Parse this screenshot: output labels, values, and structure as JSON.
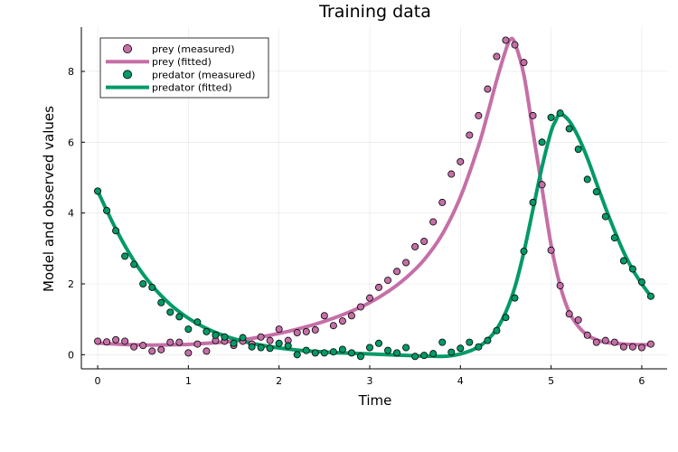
{
  "chart_data": {
    "type": "line",
    "title": "Training data",
    "xlabel": "Time",
    "ylabel": "Model and observed values",
    "xlim": [
      -0.18,
      6.28
    ],
    "ylim": [
      -0.4,
      9.25
    ],
    "xticks": [
      0,
      1,
      2,
      3,
      4,
      5,
      6
    ],
    "yticks": [
      0,
      2,
      4,
      6,
      8
    ],
    "grid": true,
    "legend_position": "top-left",
    "colors": {
      "prey": "#c56fa7",
      "predator": "#009a68"
    },
    "series": [
      {
        "name": "prey (measured)",
        "kind": "scatter",
        "color": "#c56fa7",
        "x": [
          0,
          0.1,
          0.2,
          0.3,
          0.4,
          0.5,
          0.6,
          0.7,
          0.8,
          0.9,
          1.0,
          1.1,
          1.2,
          1.3,
          1.4,
          1.5,
          1.6,
          1.7,
          1.8,
          1.9,
          2.0,
          2.1,
          2.2,
          2.3,
          2.4,
          2.5,
          2.6,
          2.7,
          2.8,
          2.9,
          3.0,
          3.1,
          3.2,
          3.3,
          3.4,
          3.5,
          3.6,
          3.7,
          3.8,
          3.9,
          4.0,
          4.1,
          4.2,
          4.3,
          4.4,
          4.5,
          4.6,
          4.7,
          4.8,
          4.9,
          5.0,
          5.1,
          5.2,
          5.3,
          5.4,
          5.5,
          5.6,
          5.7,
          5.8,
          5.9,
          6.0,
          6.1
        ],
        "y": [
          0.38,
          0.36,
          0.42,
          0.38,
          0.22,
          0.26,
          0.1,
          0.14,
          0.35,
          0.35,
          0.05,
          0.3,
          0.1,
          0.4,
          0.38,
          0.26,
          0.38,
          0.3,
          0.5,
          0.4,
          0.72,
          0.4,
          0.62,
          0.65,
          0.7,
          1.1,
          0.82,
          0.95,
          1.1,
          1.35,
          1.6,
          1.9,
          2.1,
          2.35,
          2.6,
          3.05,
          3.2,
          3.75,
          4.3,
          5.1,
          5.45,
          6.2,
          6.75,
          7.5,
          8.42,
          8.88,
          8.75,
          8.25,
          6.75,
          4.8,
          2.95,
          1.95,
          1.15,
          0.98,
          0.55,
          0.35,
          0.4,
          0.35,
          0.22,
          0.22,
          0.2,
          0.3
        ]
      },
      {
        "name": "prey (fitted)",
        "kind": "line",
        "color": "#c56fa7",
        "x": [
          0,
          0.2,
          0.4,
          0.6,
          0.8,
          1.0,
          1.2,
          1.4,
          1.6,
          1.8,
          2.0,
          2.2,
          2.4,
          2.6,
          2.8,
          3.0,
          3.2,
          3.4,
          3.6,
          3.8,
          4.0,
          4.2,
          4.3,
          4.4,
          4.5,
          4.55,
          4.6,
          4.7,
          4.8,
          4.9,
          5.0,
          5.1,
          5.2,
          5.3,
          5.4,
          5.5,
          5.6,
          5.8,
          6.0,
          6.1
        ],
        "y": [
          0.33,
          0.3,
          0.28,
          0.27,
          0.28,
          0.29,
          0.32,
          0.36,
          0.42,
          0.5,
          0.6,
          0.72,
          0.86,
          1.03,
          1.23,
          1.47,
          1.78,
          2.17,
          2.68,
          3.4,
          4.45,
          5.9,
          6.8,
          7.75,
          8.6,
          8.9,
          8.8,
          7.9,
          6.3,
          4.7,
          3.1,
          1.95,
          1.2,
          0.8,
          0.55,
          0.42,
          0.35,
          0.3,
          0.28,
          0.28
        ]
      },
      {
        "name": "predator (measured)",
        "kind": "scatter",
        "color": "#009a68",
        "x": [
          0,
          0.1,
          0.2,
          0.3,
          0.4,
          0.5,
          0.6,
          0.7,
          0.8,
          0.9,
          1.0,
          1.1,
          1.2,
          1.3,
          1.4,
          1.5,
          1.6,
          1.7,
          1.8,
          1.9,
          2.0,
          2.1,
          2.2,
          2.3,
          2.4,
          2.5,
          2.6,
          2.7,
          2.8,
          2.9,
          3.0,
          3.1,
          3.2,
          3.3,
          3.4,
          3.5,
          3.6,
          3.7,
          3.8,
          3.9,
          4.0,
          4.1,
          4.2,
          4.3,
          4.4,
          4.5,
          4.6,
          4.7,
          4.8,
          4.9,
          5.0,
          5.1,
          5.2,
          5.3,
          5.4,
          5.5,
          5.6,
          5.7,
          5.8,
          5.9,
          6.0,
          6.1
        ],
        "y": [
          4.62,
          4.07,
          3.5,
          2.78,
          2.55,
          2.0,
          1.9,
          1.47,
          1.2,
          1.07,
          0.72,
          0.92,
          0.65,
          0.55,
          0.5,
          0.32,
          0.48,
          0.22,
          0.2,
          0.18,
          0.32,
          0.25,
          0.0,
          0.12,
          0.05,
          0.05,
          0.08,
          0.15,
          0.05,
          -0.05,
          0.2,
          0.32,
          0.12,
          0.05,
          0.2,
          -0.05,
          -0.02,
          0.03,
          0.35,
          0.07,
          0.18,
          0.35,
          0.22,
          0.4,
          0.68,
          1.05,
          1.6,
          2.92,
          4.3,
          6.0,
          6.7,
          6.82,
          6.38,
          5.8,
          4.95,
          4.6,
          3.9,
          3.3,
          2.65,
          2.42,
          2.05,
          1.65
        ]
      },
      {
        "name": "predator (fitted)",
        "kind": "line",
        "color": "#009a68",
        "x": [
          0,
          0.2,
          0.4,
          0.6,
          0.8,
          1.0,
          1.2,
          1.4,
          1.6,
          1.8,
          2.0,
          2.2,
          2.4,
          2.6,
          2.8,
          3.0,
          3.2,
          3.4,
          3.6,
          3.8,
          3.9,
          4.0,
          4.1,
          4.2,
          4.3,
          4.4,
          4.5,
          4.6,
          4.7,
          4.8,
          4.9,
          5.0,
          5.05,
          5.1,
          5.2,
          5.3,
          5.4,
          5.5,
          5.6,
          5.7,
          5.8,
          5.9,
          6.0,
          6.1
        ],
        "y": [
          4.62,
          3.55,
          2.65,
          1.95,
          1.42,
          1.03,
          0.74,
          0.53,
          0.38,
          0.27,
          0.19,
          0.13,
          0.09,
          0.06,
          0.04,
          0.02,
          0.0,
          -0.02,
          -0.04,
          -0.05,
          -0.03,
          0.02,
          0.1,
          0.22,
          0.42,
          0.72,
          1.2,
          1.9,
          2.9,
          4.1,
          5.3,
          6.3,
          6.6,
          6.8,
          6.6,
          6.15,
          5.55,
          4.85,
          4.15,
          3.5,
          2.9,
          2.4,
          2.0,
          1.65
        ]
      }
    ]
  }
}
